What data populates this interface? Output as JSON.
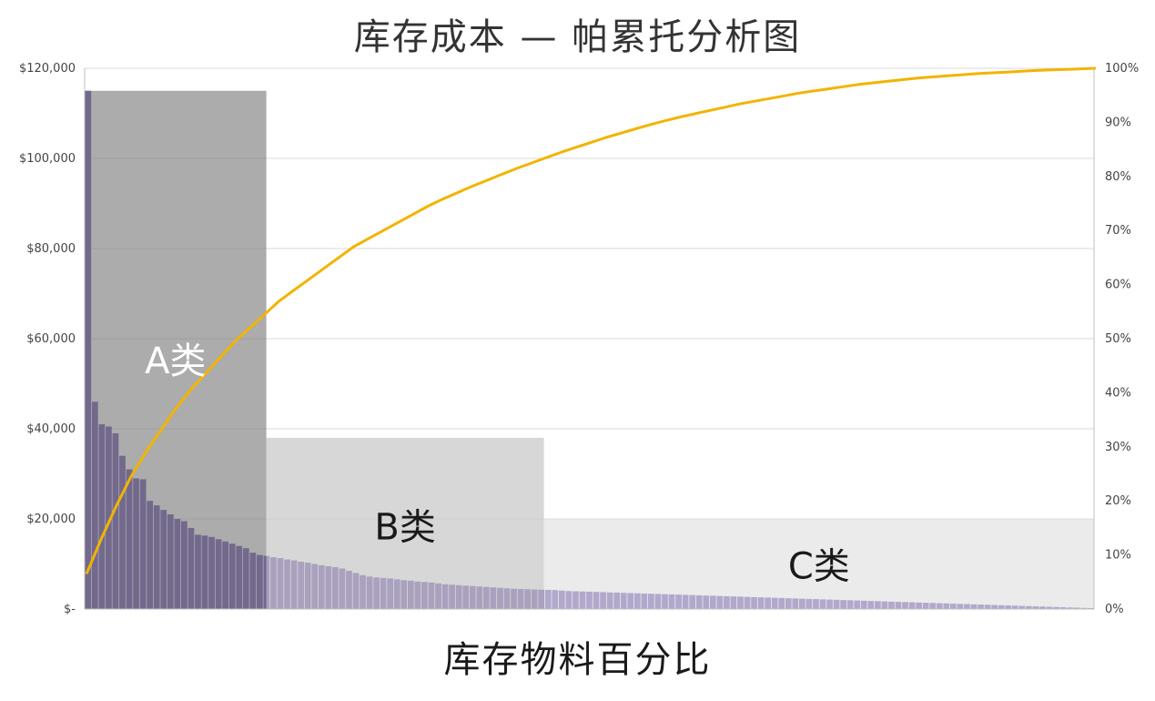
{
  "chart_data": {
    "type": "bar",
    "title": "库存成本 — 帕累托分析图",
    "xlabel": "库存物料百分比",
    "ylabel": "",
    "ylim": [
      0,
      120000
    ],
    "y2lim": [
      0,
      100
    ],
    "grid": true,
    "y_ticks": [
      "$-",
      "$20,000",
      "$40,000",
      "$60,000",
      "$80,000",
      "$100,000",
      "$120,000"
    ],
    "y2_ticks": [
      "0%",
      "10%",
      "20%",
      "30%",
      "40%",
      "50%",
      "60%",
      "70%",
      "80%",
      "90%",
      "100%"
    ],
    "bar_color": "#5b3fa6",
    "cumulative_color": "#f2b400",
    "values": [
      115000,
      46000,
      41000,
      40500,
      39000,
      34000,
      31000,
      29000,
      28800,
      24000,
      23000,
      22000,
      21000,
      20000,
      19500,
      18000,
      16500,
      16300,
      16000,
      15500,
      15000,
      14500,
      14000,
      13500,
      12500,
      12000,
      11800,
      11500,
      11300,
      11000,
      10800,
      10500,
      10300,
      10000,
      9700,
      9500,
      9300,
      9000,
      8500,
      8000,
      7500,
      7200,
      7000,
      6900,
      6800,
      6600,
      6400,
      6300,
      6100,
      6000,
      5900,
      5700,
      5500,
      5400,
      5300,
      5200,
      5100,
      5000,
      4900,
      4800,
      4700,
      4600,
      4500,
      4450,
      4400,
      4350,
      4300,
      4250,
      4200,
      4100,
      4000,
      3950,
      3900,
      3850,
      3800,
      3750,
      3700,
      3650,
      3600,
      3550,
      3500,
      3450,
      3400,
      3350,
      3300,
      3250,
      3200,
      3150,
      3100,
      3050,
      3000,
      2950,
      2900,
      2850,
      2800,
      2750,
      2700,
      2650,
      2600,
      2550,
      2500,
      2450,
      2400,
      2350,
      2300,
      2250,
      2200,
      2150,
      2100,
      2050,
      2000,
      1950,
      1900,
      1850,
      1800,
      1750,
      1700,
      1650,
      1600,
      1550,
      1500,
      1450,
      1400,
      1350,
      1300,
      1250,
      1200,
      1150,
      1100,
      1050,
      1000,
      950,
      900,
      850,
      800,
      750,
      700,
      650,
      600,
      550,
      500,
      450,
      400,
      350,
      300,
      250,
      200
    ],
    "cumulative_percent": [
      6.5,
      13,
      19,
      24.5,
      29,
      33,
      37,
      40.5,
      43.5,
      46.5,
      49.5,
      52,
      54.5,
      57,
      59,
      61,
      63,
      65,
      67,
      68.5,
      70,
      71.5,
      73,
      74.5,
      75.8,
      77,
      78.2,
      79.3,
      80.4,
      81.5,
      82.5,
      83.5,
      84.5,
      85.4,
      86.3,
      87.2,
      88,
      88.8,
      89.6,
      90.3,
      91,
      91.6,
      92.2,
      92.8,
      93.4,
      93.9,
      94.4,
      94.9,
      95.4,
      95.8,
      96.2,
      96.6,
      97,
      97.3,
      97.6,
      97.9,
      98.2,
      98.4,
      98.6,
      98.8,
      99,
      99.15,
      99.3,
      99.45,
      99.6,
      99.7,
      99.8,
      99.9,
      100
    ],
    "zones": [
      {
        "label": "A类",
        "x_start": 0,
        "x_end": 0.18,
        "value": 115000,
        "color": "#808080",
        "opacity": 0.65,
        "text_color": "#ffffff"
      },
      {
        "label": "B类",
        "x_start": 0.18,
        "x_end": 0.455,
        "value": 38000,
        "color": "#c8c8c8",
        "opacity": 0.72,
        "text_color": "#1a1a1a"
      },
      {
        "label": "C类",
        "x_start": 0.455,
        "x_end": 1.0,
        "value": 20000,
        "color": "#e0e0e0",
        "opacity": 0.65,
        "text_color": "#1a1a1a"
      }
    ]
  }
}
